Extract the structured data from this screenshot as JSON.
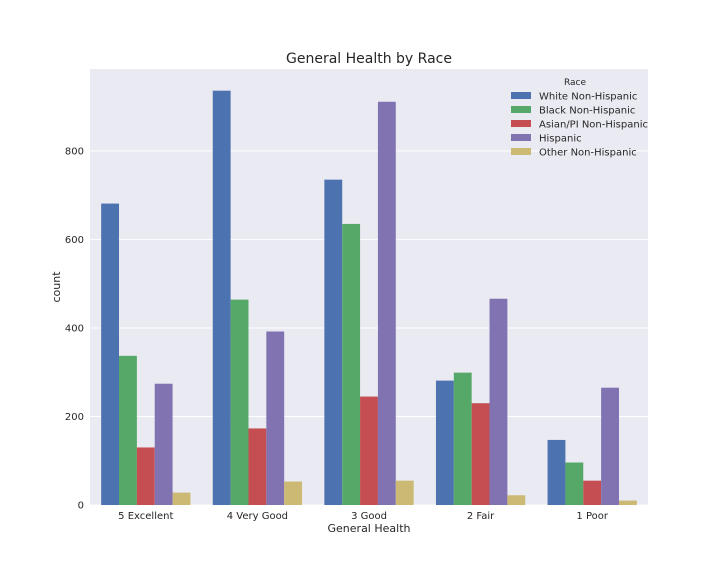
{
  "chart_data": {
    "type": "bar",
    "title": "General Health by Race",
    "xlabel": "General Health",
    "ylabel": "count",
    "ylim": [
      0,
      985
    ],
    "yticks": [
      0,
      200,
      400,
      600,
      800
    ],
    "grid": true,
    "legend": {
      "title": "Race",
      "placement": "top-right"
    },
    "categories": [
      "5 Excellent",
      "4 Very Good",
      "3 Good",
      "2 Fair",
      "1 Poor"
    ],
    "series": [
      {
        "name": "White Non-Hispanic",
        "color": "#4c72b0",
        "values": [
          681,
          936,
          735,
          281,
          147
        ]
      },
      {
        "name": "Black Non-Hispanic",
        "color": "#55a868",
        "values": [
          337,
          464,
          635,
          299,
          96
        ]
      },
      {
        "name": "Asian/PI Non-Hispanic",
        "color": "#c44e52",
        "values": [
          130,
          173,
          245,
          230,
          55
        ]
      },
      {
        "name": "Hispanic",
        "color": "#8172b2",
        "values": [
          274,
          392,
          911,
          466,
          265
        ]
      },
      {
        "name": "Other Non-Hispanic",
        "color": "#ccb974",
        "values": [
          28,
          53,
          55,
          22,
          10
        ]
      }
    ]
  }
}
